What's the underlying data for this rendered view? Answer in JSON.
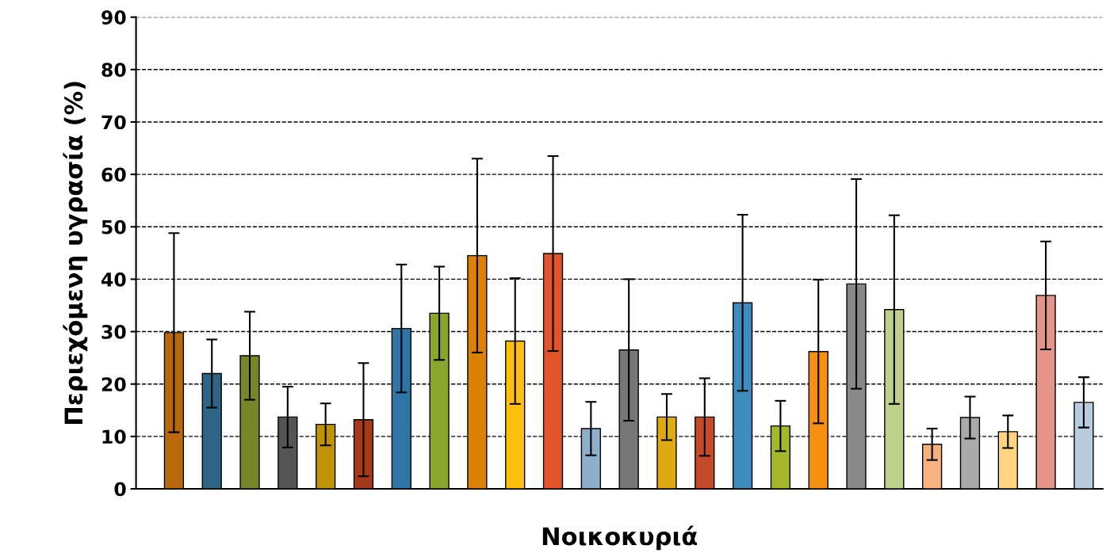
{
  "chart_data": {
    "type": "bar",
    "xlabel": "Νοικοκυριά",
    "ylabel": "Περιεχόμενη υγρασία (%)",
    "categories": [
      null,
      null,
      null,
      null,
      null,
      null,
      null,
      null,
      null,
      null,
      null,
      null,
      null,
      null,
      null,
      null,
      null,
      null,
      null,
      null,
      null,
      null,
      null,
      null,
      null
    ],
    "values": [
      29.8,
      22,
      25.4,
      13.7,
      12.3,
      13.2,
      30.6,
      33.5,
      44.5,
      28.2,
      44.9,
      11.5,
      26.5,
      13.7,
      13.7,
      35.5,
      12,
      26.2,
      39.1,
      34.2,
      8.5,
      13.6,
      10.9,
      36.9,
      16.5
    ],
    "errors": [
      19,
      6.5,
      8.4,
      5.8,
      4,
      10.8,
      12.2,
      8.9,
      18.5,
      12,
      18.6,
      5.1,
      13.5,
      4.4,
      7.4,
      16.8,
      4.8,
      13.7,
      20,
      18,
      3,
      4,
      3.1,
      10.3,
      4.8
    ],
    "colors": [
      "#b8690b",
      "#2e6586",
      "#77862a",
      "#555555",
      "#c09306",
      "#a5391a",
      "#2e75a6",
      "#8ba42c",
      "#dd8004",
      "#fec00d",
      "#e2552a",
      "#8fb0cc",
      "#777777",
      "#e0aa12",
      "#c44a2a",
      "#3e8bbe",
      "#a6b72a",
      "#f78f10",
      "#888888",
      "#bfcf8c",
      "#f6b17f",
      "#aaaaaa",
      "#ffd581",
      "#e59489",
      "#b8ccdd"
    ],
    "ylim": [
      0,
      90
    ],
    "yticks": [
      0,
      10,
      20,
      30,
      40,
      50,
      60,
      70,
      80,
      90
    ],
    "grid": "y",
    "legend": false
  }
}
